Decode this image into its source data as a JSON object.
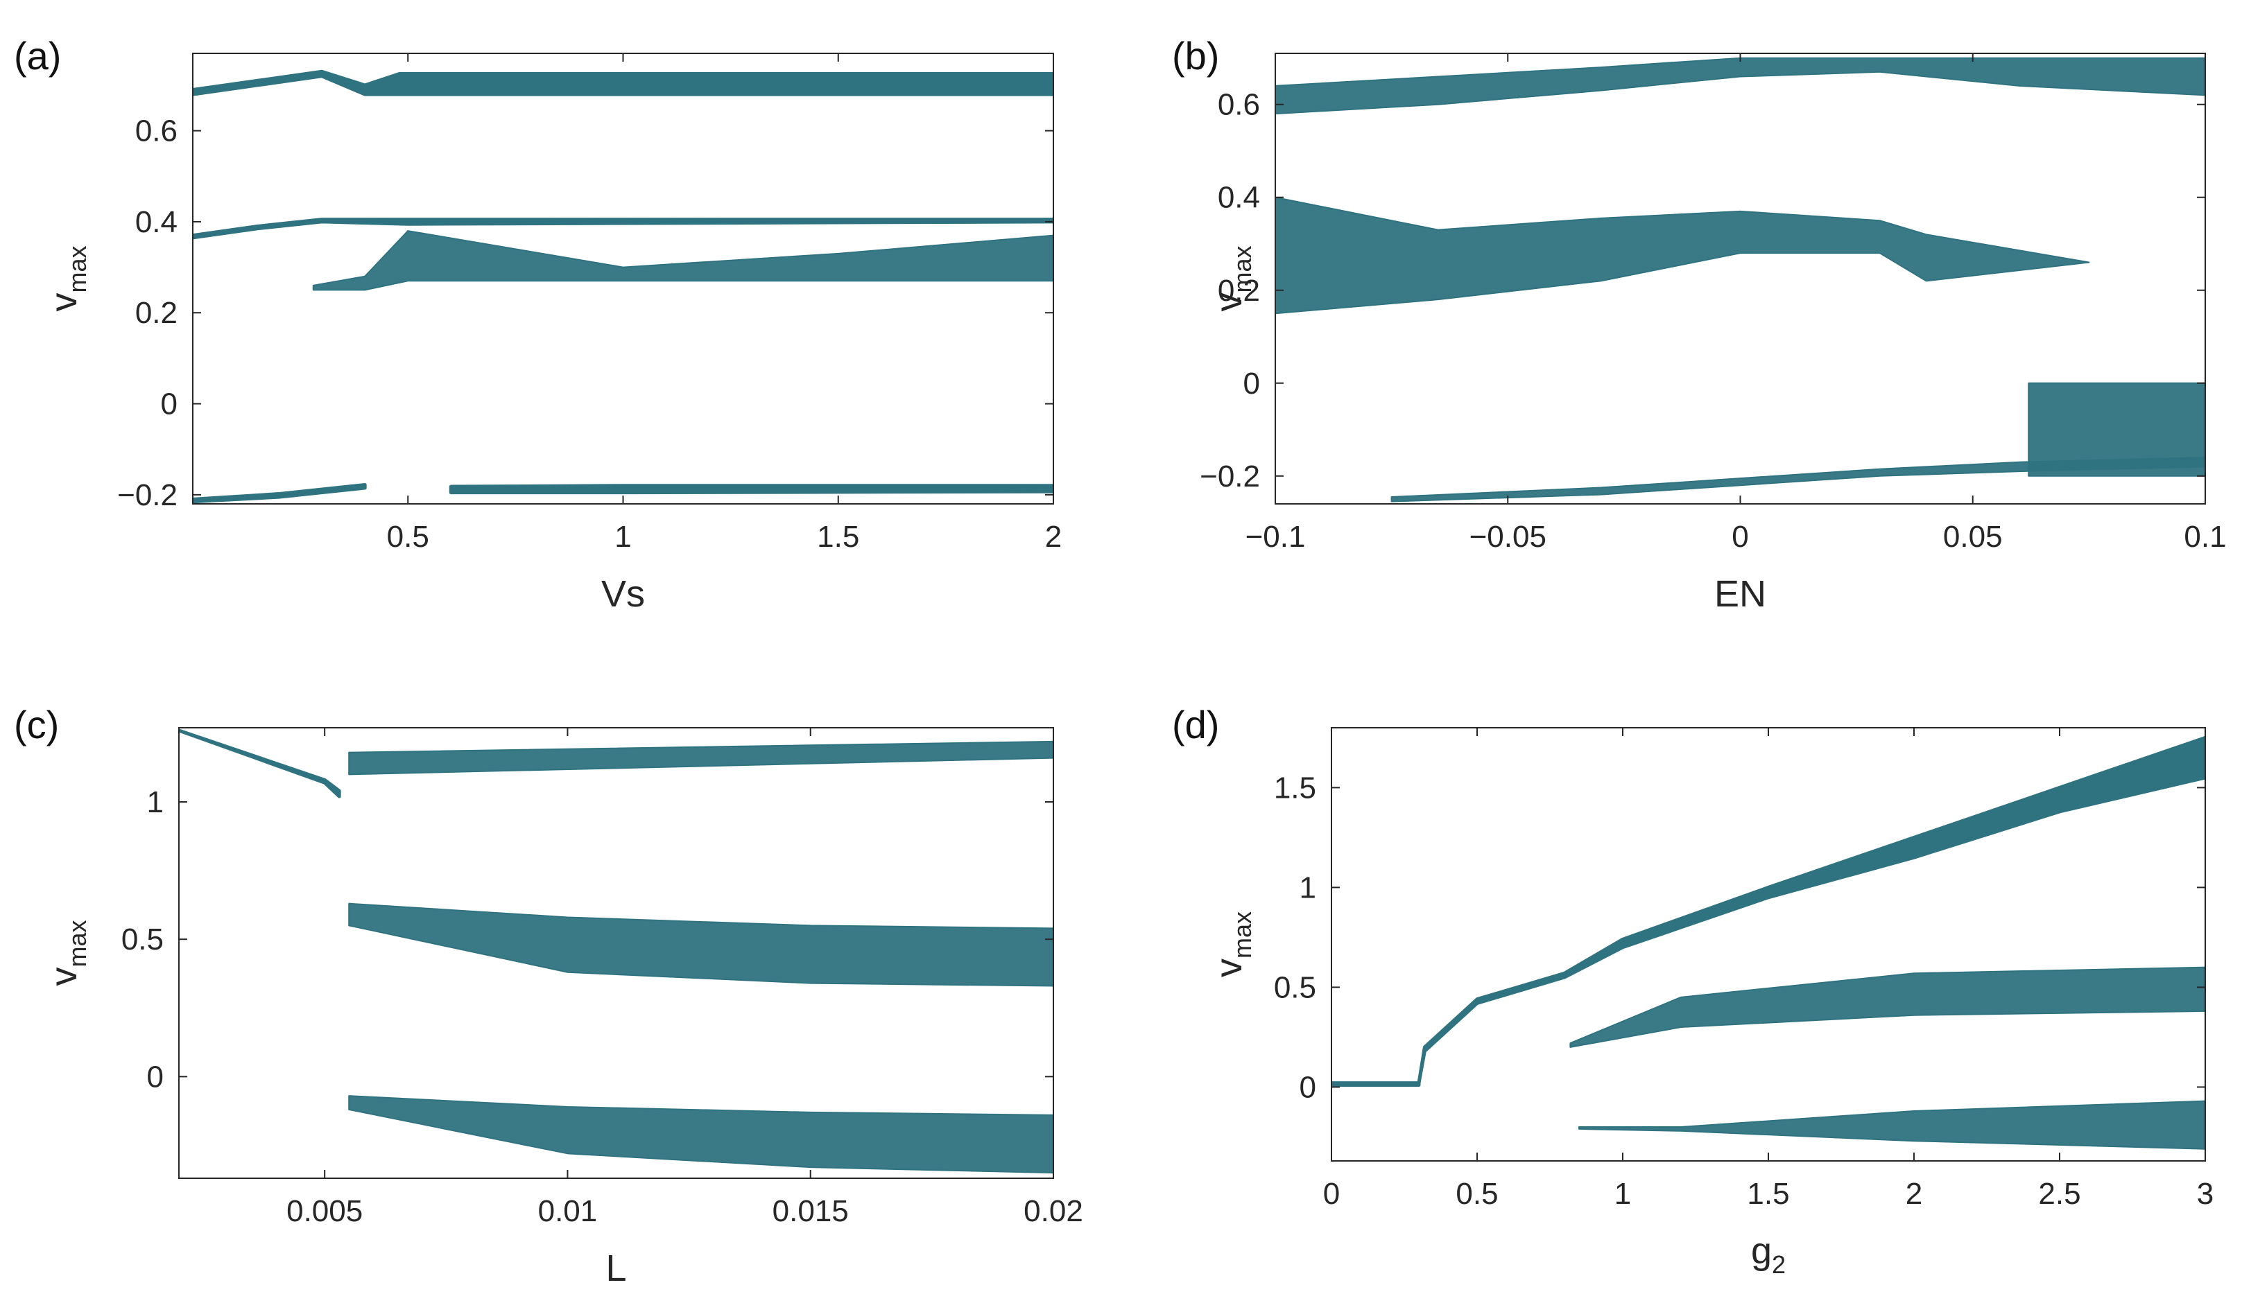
{
  "colors": {
    "data": "#2f7380",
    "axis": "#262626"
  },
  "chart_data": [
    {
      "type": "scatter",
      "panel_label": "(a)",
      "title": "",
      "xlabel": "Vs",
      "ylabel_main": "v",
      "ylabel_sub": "max",
      "xlim": [
        0,
        2
      ],
      "ylim": [
        -0.22,
        0.77
      ],
      "xticks": [
        0.5,
        1,
        1.5,
        2
      ],
      "xtick_labels": [
        "0.5",
        "1",
        "1.5",
        "2"
      ],
      "yticks": [
        -0.2,
        0,
        0.2,
        0.4,
        0.6
      ],
      "ytick_labels": [
        "−0.2",
        "0",
        "0.2",
        "0.4",
        "0.6"
      ],
      "series": [
        {
          "name": "upper-branch",
          "kind": "line",
          "x": [
            0,
            0.15,
            0.3,
            0.4,
            0.48,
            2
          ],
          "y": [
            0.68,
            0.7,
            0.72,
            0.68,
            0.68,
            0.68
          ],
          "y2": [
            0.69,
            0.71,
            0.73,
            0.7,
            0.725,
            0.725
          ]
        },
        {
          "name": "middle-branch",
          "kind": "line",
          "x": [
            0,
            0.15,
            0.3,
            0.5,
            2
          ],
          "y": [
            0.365,
            0.385,
            0.4,
            0.395,
            0.4
          ],
          "y2": [
            0.37,
            0.39,
            0.405,
            0.405,
            0.405
          ]
        },
        {
          "name": "chaotic-band",
          "kind": "band",
          "x": [
            0.28,
            0.4,
            0.5,
            1,
            1.5,
            2
          ],
          "y": [
            0.25,
            0.25,
            0.27,
            0.27,
            0.27,
            0.27
          ],
          "y2": [
            0.26,
            0.28,
            0.38,
            0.3,
            0.33,
            0.37
          ]
        },
        {
          "name": "lower-branch",
          "kind": "line",
          "x": [
            0,
            0.2,
            0.4
          ],
          "y": [
            -0.215,
            -0.205,
            -0.185
          ],
          "y2": [
            -0.21,
            -0.198,
            -0.178
          ]
        },
        {
          "name": "lower-branch-2",
          "kind": "line",
          "x": [
            0.6,
            1,
            2
          ],
          "y": [
            -0.195,
            -0.195,
            -0.193
          ],
          "y2": [
            -0.182,
            -0.18,
            -0.18
          ]
        }
      ]
    },
    {
      "type": "scatter",
      "panel_label": "(b)",
      "title": "",
      "xlabel": "EN",
      "ylabel_main": "v",
      "ylabel_sub": "max",
      "xlim": [
        -0.1,
        0.1
      ],
      "ylim": [
        -0.26,
        0.71
      ],
      "xticks": [
        -0.1,
        -0.05,
        0,
        0.05,
        0.1
      ],
      "xtick_labels": [
        "−0.1",
        "−0.05",
        "0",
        "0.05",
        "0.1"
      ],
      "yticks": [
        -0.2,
        0,
        0.2,
        0.4,
        0.6
      ],
      "ytick_labels": [
        "−0.2",
        "0",
        "0.2",
        "0.4",
        "0.6"
      ],
      "series": [
        {
          "name": "upper-band",
          "kind": "band",
          "x": [
            -0.1,
            -0.065,
            -0.03,
            0,
            0.03,
            0.06,
            0.1
          ],
          "y": [
            0.58,
            0.6,
            0.63,
            0.66,
            0.67,
            0.64,
            0.62
          ],
          "y2": [
            0.64,
            0.66,
            0.68,
            0.7,
            0.7,
            0.7,
            0.7
          ]
        },
        {
          "name": "middle-band",
          "kind": "band",
          "x": [
            -0.1,
            -0.065,
            -0.03,
            0,
            0.03,
            0.04,
            0.075
          ],
          "y": [
            0.15,
            0.18,
            0.22,
            0.28,
            0.28,
            0.22,
            0.26
          ],
          "y2": [
            0.4,
            0.33,
            0.355,
            0.37,
            0.35,
            0.32,
            0.26
          ]
        },
        {
          "name": "lower-branch",
          "kind": "band",
          "x": [
            -0.075,
            -0.03,
            0,
            0.03,
            0.06,
            0.1
          ],
          "y": [
            -0.255,
            -0.24,
            -0.22,
            -0.2,
            -0.19,
            -0.18
          ],
          "y2": [
            -0.245,
            -0.225,
            -0.205,
            -0.185,
            -0.17,
            -0.16
          ]
        },
        {
          "name": "right-chaotic",
          "kind": "band",
          "x": [
            0.062,
            0.1
          ],
          "y": [
            -0.2,
            -0.2
          ],
          "y2": [
            0.0,
            0.0
          ]
        }
      ]
    },
    {
      "type": "scatter",
      "panel_label": "(c)",
      "title": "",
      "xlabel": "L",
      "ylabel_main": "v",
      "ylabel_sub": "max",
      "xlim": [
        0.002,
        0.02
      ],
      "ylim": [
        -0.37,
        1.27
      ],
      "xticks": [
        0.005,
        0.01,
        0.015,
        0.02
      ],
      "xtick_labels": [
        "0.005",
        "0.01",
        "0.015",
        "0.02"
      ],
      "yticks": [
        0,
        0.5,
        1
      ],
      "ytick_labels": [
        "0",
        "0.5",
        "1"
      ],
      "series": [
        {
          "name": "upper-branch",
          "kind": "line",
          "x": [
            0.002,
            0.005,
            0.0053
          ],
          "y": [
            1.26,
            1.07,
            1.02
          ],
          "y2": [
            1.26,
            1.08,
            1.04
          ]
        },
        {
          "name": "upper-segments",
          "kind": "band",
          "x": [
            0.0055,
            0.02
          ],
          "y": [
            1.1,
            1.16
          ],
          "y2": [
            1.18,
            1.22
          ]
        },
        {
          "name": "middle-band",
          "kind": "band",
          "x": [
            0.0055,
            0.01,
            0.015,
            0.02
          ],
          "y": [
            0.55,
            0.38,
            0.34,
            0.33
          ],
          "y2": [
            0.63,
            0.58,
            0.55,
            0.54
          ]
        },
        {
          "name": "lower-band",
          "kind": "band",
          "x": [
            0.0055,
            0.01,
            0.015,
            0.02
          ],
          "y": [
            -0.12,
            -0.28,
            -0.33,
            -0.35
          ],
          "y2": [
            -0.07,
            -0.11,
            -0.13,
            -0.14
          ]
        }
      ]
    },
    {
      "type": "scatter",
      "panel_label": "(d)",
      "title": "",
      "xlabel": "g",
      "xlabel_sub": "2",
      "ylabel_main": "v",
      "ylabel_sub": "max",
      "xlim": [
        0,
        3
      ],
      "ylim": [
        -0.37,
        1.8
      ],
      "xticks": [
        0,
        0.5,
        1,
        1.5,
        2,
        2.5,
        3
      ],
      "xtick_labels": [
        "0",
        "0.5",
        "1",
        "1.5",
        "2",
        "2.5",
        "3"
      ],
      "yticks": [
        0,
        0.5,
        1,
        1.5
      ],
      "ytick_labels": [
        "0",
        "0.5",
        "1",
        "1.5"
      ],
      "series": [
        {
          "name": "flat-branch",
          "kind": "line",
          "x": [
            0,
            0.3
          ],
          "y": [
            0.01,
            0.01
          ],
          "y2": [
            0.02,
            0.02
          ]
        },
        {
          "name": "rising-branch",
          "kind": "line",
          "x": [
            0.3,
            0.32,
            0.5,
            0.8,
            1.0,
            1.5,
            2.0,
            2.5,
            3.0
          ],
          "y": [
            0.02,
            0.18,
            0.42,
            0.55,
            0.7,
            0.95,
            1.15,
            1.38,
            1.55
          ],
          "y2": [
            0.02,
            0.2,
            0.44,
            0.57,
            0.74,
            1.0,
            1.25,
            1.5,
            1.75
          ]
        },
        {
          "name": "middle-band",
          "kind": "band",
          "x": [
            0.82,
            1.2,
            2.0,
            3.0
          ],
          "y": [
            0.2,
            0.3,
            0.36,
            0.38
          ],
          "y2": [
            0.22,
            0.45,
            0.57,
            0.6
          ]
        },
        {
          "name": "lower-band",
          "kind": "band",
          "x": [
            0.85,
            1.2,
            2.0,
            3.0
          ],
          "y": [
            -0.21,
            -0.22,
            -0.27,
            -0.31
          ],
          "y2": [
            -0.2,
            -0.2,
            -0.12,
            -0.07
          ]
        }
      ]
    }
  ]
}
